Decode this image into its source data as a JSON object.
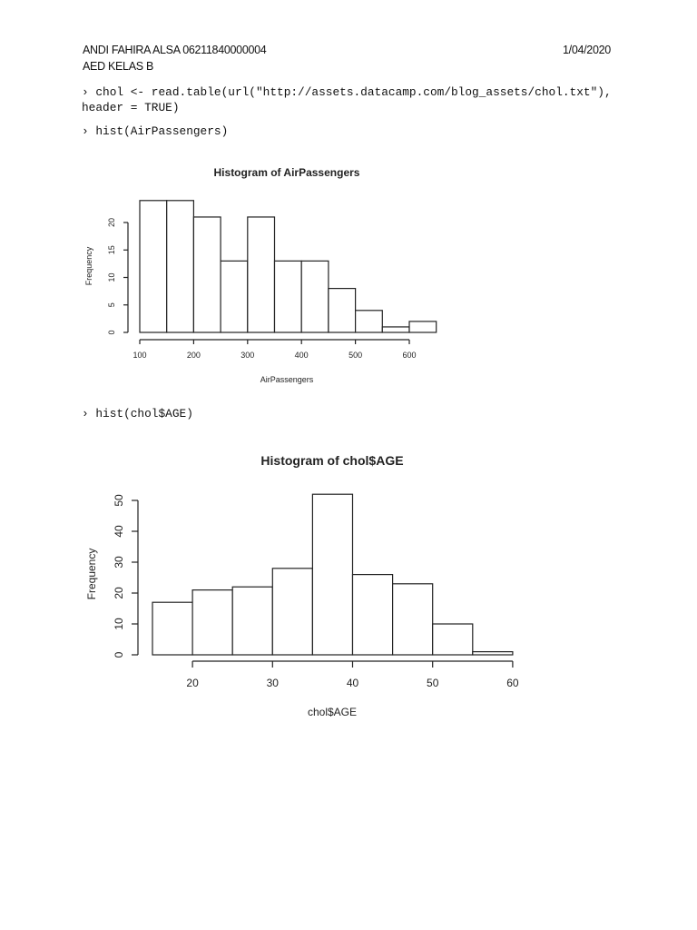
{
  "header": {
    "name_id": "ANDI FAHIRA ALSA 06211840000004",
    "class": "AED KELAS B",
    "date": "1/04/2020"
  },
  "commands": {
    "cmd1_line1": "› chol <- read.table(url(\"http://assets.datacamp.com/blog_assets/chol.txt\"),",
    "cmd1_line2": "header = TRUE)",
    "cmd2": "› hist(AirPassengers)",
    "cmd3": "› hist(chol$AGE)"
  },
  "chart_data": [
    {
      "type": "bar",
      "title": "Histogram of AirPassengers",
      "xlabel": "AirPassengers",
      "ylabel": "Frequency",
      "bin_edges": [
        100,
        150,
        200,
        250,
        300,
        350,
        400,
        450,
        500,
        550,
        600,
        650
      ],
      "categories": [
        "100-150",
        "150-200",
        "200-250",
        "250-300",
        "300-350",
        "350-400",
        "400-450",
        "450-500",
        "500-550",
        "550-600",
        "600-650"
      ],
      "values": [
        24,
        24,
        21,
        13,
        21,
        13,
        13,
        8,
        4,
        1,
        2
      ],
      "xticks": [
        "100",
        "200",
        "300",
        "400",
        "500",
        "600"
      ],
      "yticks": [
        "0",
        "5",
        "10",
        "15",
        "20"
      ],
      "xlim": [
        100,
        650
      ],
      "ylim": [
        0,
        24
      ],
      "grid": false,
      "legend": null
    },
    {
      "type": "bar",
      "title": "Histogram of chol$AGE",
      "xlabel": "chol$AGE",
      "ylabel": "Frequency",
      "bin_edges": [
        15,
        20,
        25,
        30,
        35,
        40,
        45,
        50,
        55,
        60
      ],
      "categories": [
        "15-20",
        "20-25",
        "25-30",
        "30-35",
        "35-40",
        "40-45",
        "45-50",
        "50-55",
        "55-60"
      ],
      "values": [
        17,
        21,
        22,
        28,
        52,
        26,
        23,
        10,
        1
      ],
      "xticks": [
        "20",
        "30",
        "40",
        "50",
        "60"
      ],
      "yticks": [
        "0",
        "10",
        "20",
        "30",
        "40",
        "50"
      ],
      "xlim": [
        15,
        60
      ],
      "ylim": [
        0,
        52
      ],
      "grid": false,
      "legend": null
    }
  ]
}
